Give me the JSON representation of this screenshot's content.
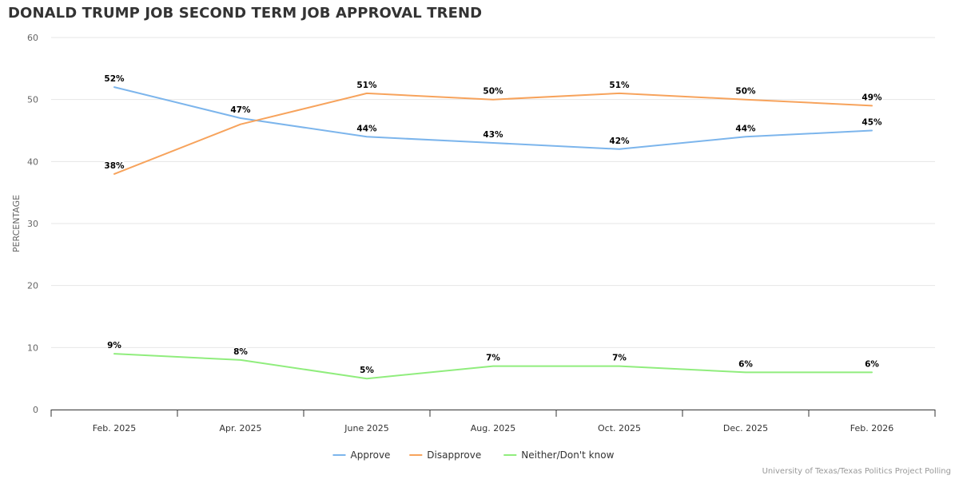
{
  "chart_data": {
    "type": "line",
    "title": "DONALD TRUMP JOB SECOND TERM JOB APPROVAL TREND",
    "xlabel": "",
    "ylabel": "PERCENTAGE",
    "ylim": [
      0,
      60
    ],
    "yticks": [
      0,
      10,
      20,
      30,
      40,
      50,
      60
    ],
    "categories": [
      "Feb. 2025",
      "Apr. 2025",
      "June 2025",
      "Aug. 2025",
      "Oct. 2025",
      "Dec. 2025",
      "Feb. 2026"
    ],
    "series": [
      {
        "name": "Approve",
        "color": "#7cb5ec",
        "values": [
          52,
          47,
          44,
          43,
          42,
          44,
          45
        ],
        "labels": [
          "52%",
          "47%",
          "44%",
          "43%",
          "42%",
          "44%",
          "45%"
        ]
      },
      {
        "name": "Disapprove",
        "color": "#f7a35c",
        "values": [
          38,
          46,
          51,
          50,
          51,
          50,
          49
        ],
        "labels": [
          "38%",
          "",
          "51%",
          "50%",
          "51%",
          "50%",
          "49%"
        ]
      },
      {
        "name": "Neither/Don't know",
        "color": "#90ed7d",
        "values": [
          9,
          8,
          5,
          7,
          7,
          6,
          6
        ],
        "labels": [
          "9%",
          "8%",
          "5%",
          "7%",
          "7%",
          "6%",
          "6%"
        ]
      }
    ],
    "legend": "bottom-center",
    "grid": true
  },
  "credits": "University of Texas/Texas Politics Project Polling"
}
